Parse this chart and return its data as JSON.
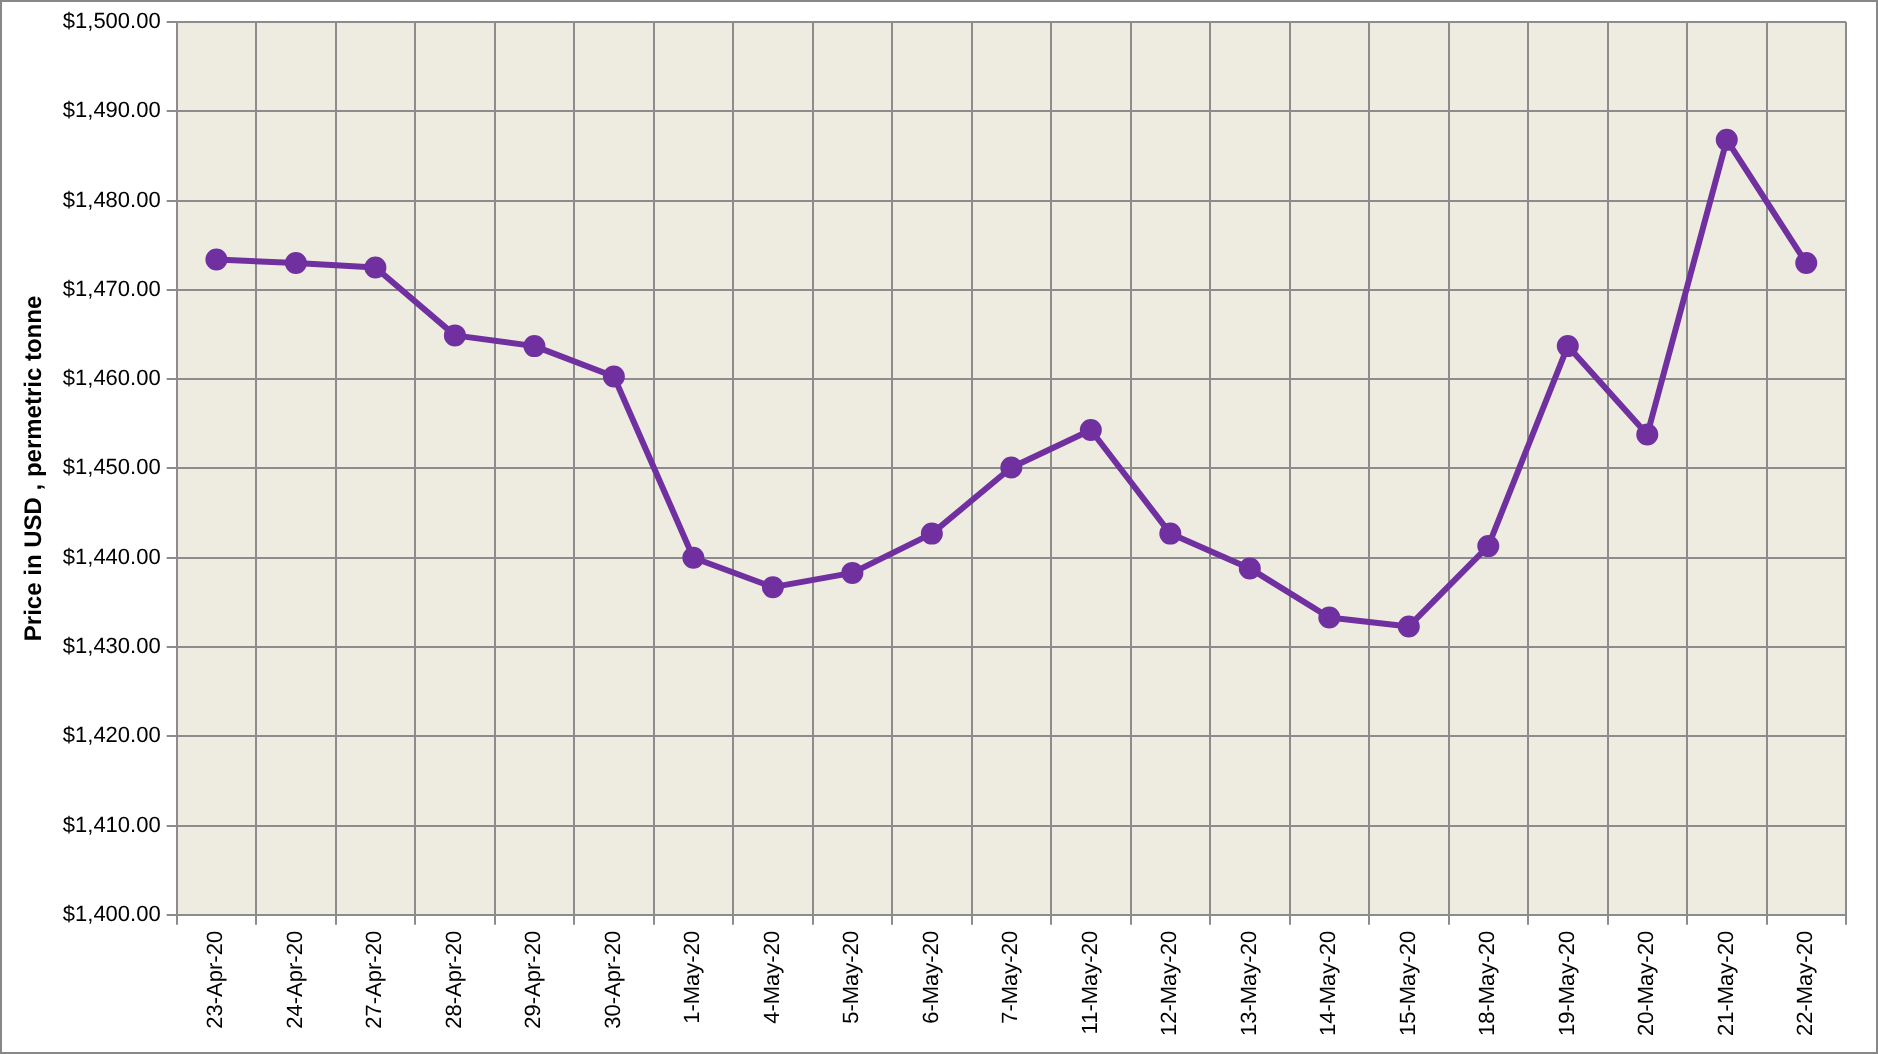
{
  "chart_data": {
    "type": "line",
    "ylabel": "Price in USD , permetric tonne",
    "categories": [
      "23-Apr-20",
      "24-Apr-20",
      "27-Apr-20",
      "28-Apr-20",
      "29-Apr-20",
      "30-Apr-20",
      "1-May-20",
      "4-May-20",
      "5-May-20",
      "6-May-20",
      "7-May-20",
      "11-May-20",
      "12-May-20",
      "13-May-20",
      "14-May-20",
      "15-May-20",
      "18-May-20",
      "19-May-20",
      "20-May-20",
      "21-May-20",
      "22-May-20"
    ],
    "series": [
      {
        "color": "#7030a0",
        "values": [
          1473.4,
          1473.0,
          1472.5,
          1464.9,
          1463.7,
          1460.3,
          1440.0,
          1436.7,
          1438.3,
          1442.7,
          1450.1,
          1454.3,
          1442.7,
          1438.8,
          1433.3,
          1432.3,
          1441.3,
          1463.7,
          1453.8,
          1486.8,
          1473.0
        ]
      }
    ],
    "ylim": [
      1400,
      1500
    ],
    "yticks": [
      {
        "value": 1400,
        "label": "$1,400.00"
      },
      {
        "value": 1410,
        "label": "$1,410.00"
      },
      {
        "value": 1420,
        "label": "$1,420.00"
      },
      {
        "value": 1430,
        "label": "$1,430.00"
      },
      {
        "value": 1440,
        "label": "$1,440.00"
      },
      {
        "value": 1450,
        "label": "$1,450.00"
      },
      {
        "value": 1460,
        "label": "$1,460.00"
      },
      {
        "value": 1470,
        "label": "$1,470.00"
      },
      {
        "value": 1480,
        "label": "$1,480.00"
      },
      {
        "value": 1490,
        "label": "$1,490.00"
      },
      {
        "value": 1500,
        "label": "$1,500.00"
      }
    ],
    "grid": true,
    "legend": false,
    "marker": "circle",
    "line_style": "solid"
  }
}
